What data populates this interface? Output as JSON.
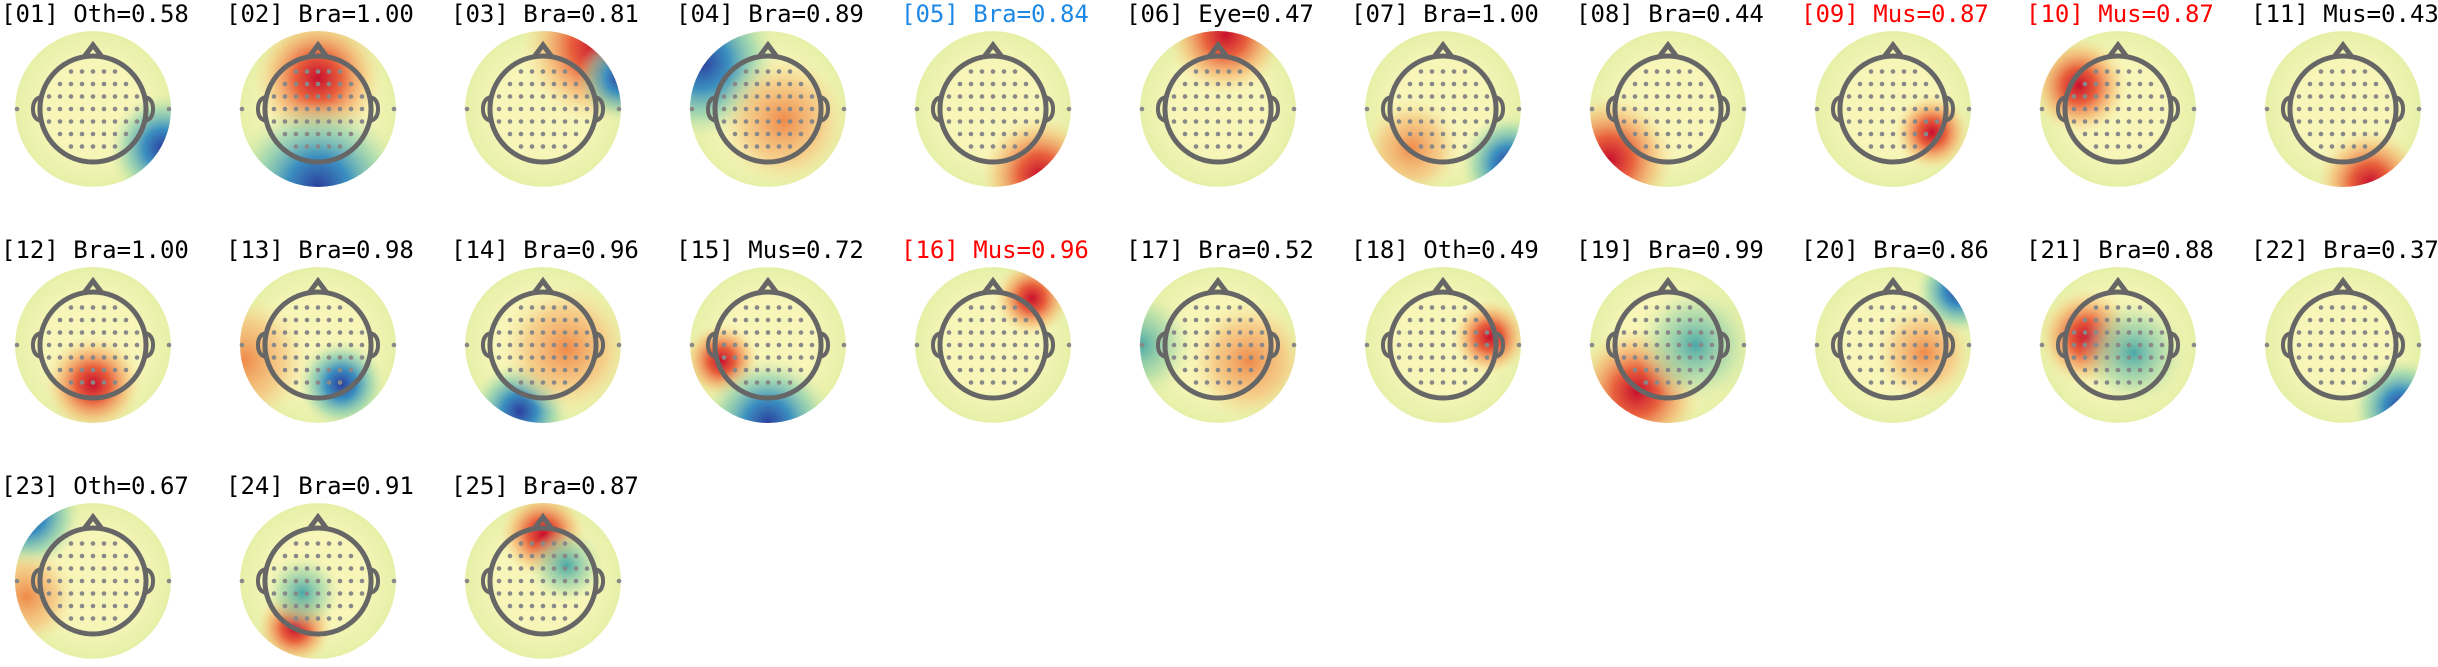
{
  "components": [
    {
      "label": "[01] Oth=0.58",
      "color": "#000000"
    },
    {
      "label": "[02] Bra=1.00",
      "color": "#000000"
    },
    {
      "label": "[03] Bra=0.81",
      "color": "#000000"
    },
    {
      "label": "[04] Bra=0.89",
      "color": "#000000"
    },
    {
      "label": "[05] Bra=0.84",
      "color": "#1e88e5"
    },
    {
      "label": "[06] Eye=0.47",
      "color": "#000000"
    },
    {
      "label": "[07] Bra=1.00",
      "color": "#000000"
    },
    {
      "label": "[08] Bra=0.44",
      "color": "#000000"
    },
    {
      "label": "[09] Mus=0.87",
      "color": "#ff0000"
    },
    {
      "label": "[10] Mus=0.87",
      "color": "#ff0000"
    },
    {
      "label": "[11] Mus=0.43",
      "color": "#000000"
    },
    {
      "label": "[12] Bra=1.00",
      "color": "#000000"
    },
    {
      "label": "[13] Bra=0.98",
      "color": "#000000"
    },
    {
      "label": "[14] Bra=0.96",
      "color": "#000000"
    },
    {
      "label": "[15] Mus=0.72",
      "color": "#000000"
    },
    {
      "label": "[16] Mus=0.96",
      "color": "#ff0000"
    },
    {
      "label": "[17] Bra=0.52",
      "color": "#000000"
    },
    {
      "label": "[18] Oth=0.49",
      "color": "#000000"
    },
    {
      "label": "[19] Bra=0.99",
      "color": "#000000"
    },
    {
      "label": "[20] Bra=0.86",
      "color": "#000000"
    },
    {
      "label": "[21] Bra=0.88",
      "color": "#000000"
    },
    {
      "label": "[22] Bra=0.37",
      "color": "#000000"
    },
    {
      "label": "[23] Oth=0.67",
      "color": "#000000"
    },
    {
      "label": "[24] Bra=0.91",
      "color": "#000000"
    },
    {
      "label": "[25] Bra=0.87",
      "color": "#000000"
    }
  ]
}
